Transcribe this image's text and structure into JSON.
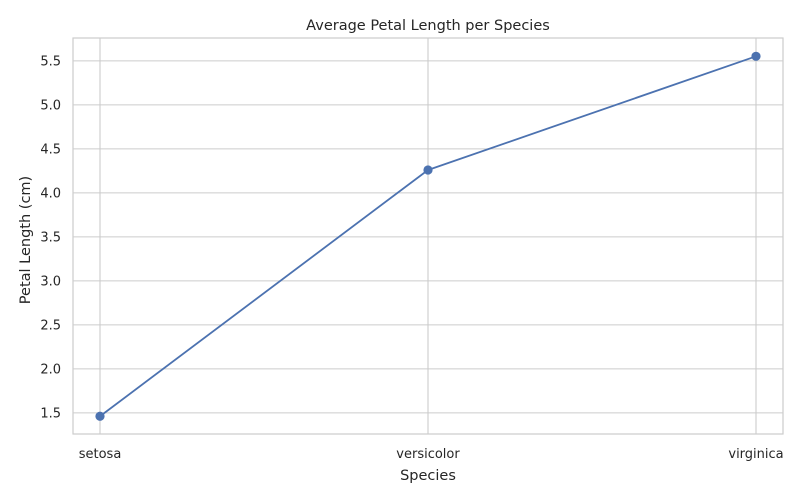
{
  "chart_data": {
    "type": "line",
    "title": "Average Petal Length per Species",
    "xlabel": "Species",
    "ylabel": "Petal Length (cm)",
    "categories": [
      "setosa",
      "versicolor",
      "virginica"
    ],
    "series": [
      {
        "values": [
          1.462,
          4.26,
          5.552
        ],
        "color": "#4c72b0",
        "marker": "circle"
      }
    ],
    "yticks": [
      "1.5",
      "2.0",
      "2.5",
      "3.0",
      "3.5",
      "4.0",
      "4.5",
      "5.0",
      "5.5"
    ],
    "ylim": [
      1.26,
      5.76
    ],
    "grid": true
  }
}
